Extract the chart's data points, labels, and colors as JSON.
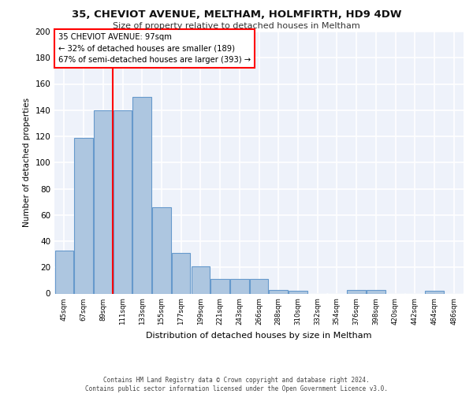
{
  "title_line1": "35, CHEVIOT AVENUE, MELTHAM, HOLMFIRTH, HD9 4DW",
  "title_line2": "Size of property relative to detached houses in Meltham",
  "xlabel": "Distribution of detached houses by size in Meltham",
  "ylabel": "Number of detached properties",
  "categories": [
    "45sqm",
    "67sqm",
    "89sqm",
    "111sqm",
    "133sqm",
    "155sqm",
    "177sqm",
    "199sqm",
    "221sqm",
    "243sqm",
    "266sqm",
    "288sqm",
    "310sqm",
    "332sqm",
    "354sqm",
    "376sqm",
    "398sqm",
    "420sqm",
    "442sqm",
    "464sqm",
    "486sqm"
  ],
  "values": [
    33,
    119,
    140,
    140,
    150,
    66,
    31,
    21,
    11,
    11,
    11,
    3,
    2,
    0,
    0,
    3,
    3,
    0,
    0,
    2,
    0
  ],
  "bar_color": "#adc6e0",
  "bar_edge_color": "#6699cc",
  "ylim": [
    0,
    200
  ],
  "yticks": [
    0,
    20,
    40,
    60,
    80,
    100,
    120,
    140,
    160,
    180,
    200
  ],
  "annotation_title": "35 CHEVIOT AVENUE: 97sqm",
  "annotation_line2": "← 32% of detached houses are smaller (189)",
  "annotation_line3": "67% of semi-detached houses are larger (393) →",
  "vline_position": 2.5,
  "footer_line1": "Contains HM Land Registry data © Crown copyright and database right 2024.",
  "footer_line2": "Contains public sector information licensed under the Open Government Licence v3.0.",
  "background_color": "#eef2fa",
  "grid_color": "#ffffff"
}
